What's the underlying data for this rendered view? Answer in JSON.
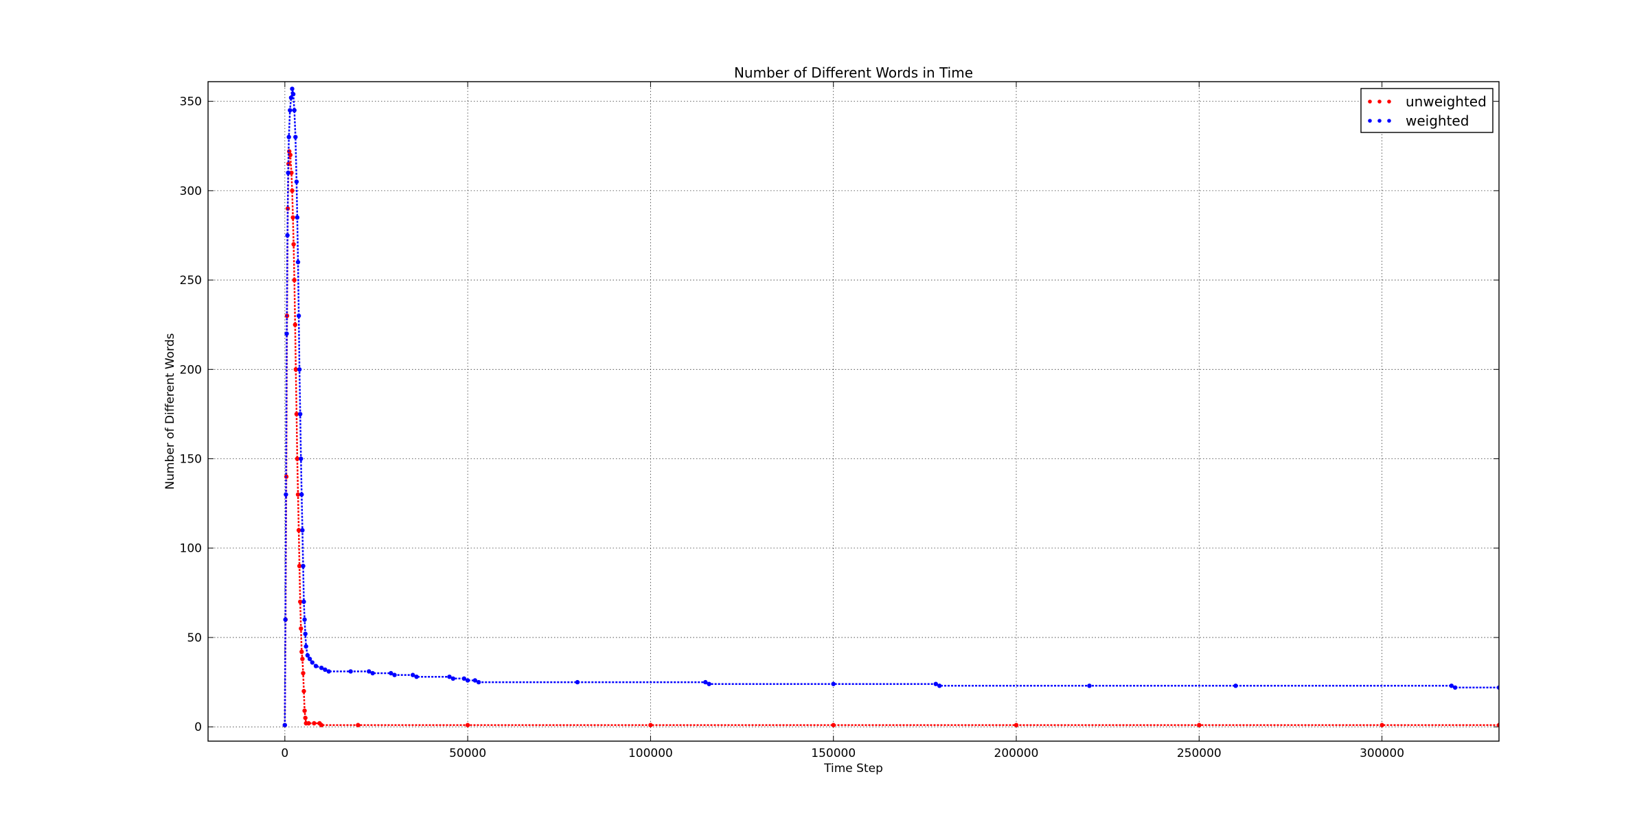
{
  "chart_data": {
    "type": "scatter",
    "title": "Number of Different Words in Time",
    "xlabel": "Time Step",
    "ylabel": "Number of Different Words",
    "xlim": [
      -21000,
      332000
    ],
    "ylim": [
      -8,
      361
    ],
    "xticks": [
      0,
      50000,
      100000,
      150000,
      200000,
      250000,
      300000
    ],
    "yticks": [
      0,
      50,
      100,
      150,
      200,
      250,
      300,
      350
    ],
    "grid": true,
    "legend_position": "top-right",
    "series": [
      {
        "name": "unweighted",
        "color": "#ff0000",
        "points": [
          [
            0,
            1
          ],
          [
            200,
            60
          ],
          [
            400,
            140
          ],
          [
            600,
            230
          ],
          [
            800,
            290
          ],
          [
            1000,
            315
          ],
          [
            1200,
            322
          ],
          [
            1500,
            320
          ],
          [
            1800,
            310
          ],
          [
            2000,
            300
          ],
          [
            2200,
            285
          ],
          [
            2400,
            270
          ],
          [
            2600,
            250
          ],
          [
            2800,
            225
          ],
          [
            3000,
            200
          ],
          [
            3200,
            175
          ],
          [
            3400,
            150
          ],
          [
            3600,
            130
          ],
          [
            3800,
            110
          ],
          [
            4000,
            90
          ],
          [
            4200,
            70
          ],
          [
            4400,
            55
          ],
          [
            4600,
            42
          ],
          [
            4800,
            38
          ],
          [
            5000,
            30
          ],
          [
            5200,
            20
          ],
          [
            5400,
            9
          ],
          [
            5600,
            5
          ],
          [
            5800,
            2
          ],
          [
            6500,
            2
          ],
          [
            8000,
            2
          ],
          [
            9500,
            2
          ],
          [
            10000,
            1
          ],
          [
            20000,
            1
          ],
          [
            50000,
            1
          ],
          [
            100000,
            1
          ],
          [
            150000,
            1
          ],
          [
            200000,
            1
          ],
          [
            250000,
            1
          ],
          [
            300000,
            1
          ],
          [
            332000,
            1
          ]
        ]
      },
      {
        "name": "weighted",
        "color": "#0000ff",
        "points": [
          [
            0,
            1
          ],
          [
            150,
            60
          ],
          [
            300,
            130
          ],
          [
            500,
            220
          ],
          [
            700,
            275
          ],
          [
            900,
            310
          ],
          [
            1100,
            330
          ],
          [
            1400,
            345
          ],
          [
            1700,
            352
          ],
          [
            2000,
            357
          ],
          [
            2300,
            354
          ],
          [
            2600,
            345
          ],
          [
            2900,
            330
          ],
          [
            3200,
            305
          ],
          [
            3400,
            285
          ],
          [
            3600,
            260
          ],
          [
            3800,
            230
          ],
          [
            4000,
            200
          ],
          [
            4200,
            175
          ],
          [
            4400,
            150
          ],
          [
            4600,
            130
          ],
          [
            4800,
            110
          ],
          [
            5000,
            90
          ],
          [
            5200,
            70
          ],
          [
            5400,
            60
          ],
          [
            5600,
            52
          ],
          [
            5800,
            45
          ],
          [
            6200,
            40
          ],
          [
            6800,
            38
          ],
          [
            7500,
            36
          ],
          [
            8500,
            34
          ],
          [
            10000,
            33
          ],
          [
            11000,
            32
          ],
          [
            12000,
            31
          ],
          [
            18000,
            31
          ],
          [
            23000,
            31
          ],
          [
            24000,
            30
          ],
          [
            29000,
            30
          ],
          [
            30000,
            29
          ],
          [
            35000,
            29
          ],
          [
            36000,
            28
          ],
          [
            45000,
            28
          ],
          [
            46000,
            27
          ],
          [
            49000,
            27
          ],
          [
            50000,
            26
          ],
          [
            52000,
            26
          ],
          [
            53000,
            25
          ],
          [
            80000,
            25
          ],
          [
            115000,
            25
          ],
          [
            116000,
            24
          ],
          [
            150000,
            24
          ],
          [
            178000,
            24
          ],
          [
            179000,
            23
          ],
          [
            220000,
            23
          ],
          [
            260000,
            23
          ],
          [
            319000,
            23
          ],
          [
            320000,
            22
          ],
          [
            332000,
            22
          ]
        ]
      }
    ]
  }
}
